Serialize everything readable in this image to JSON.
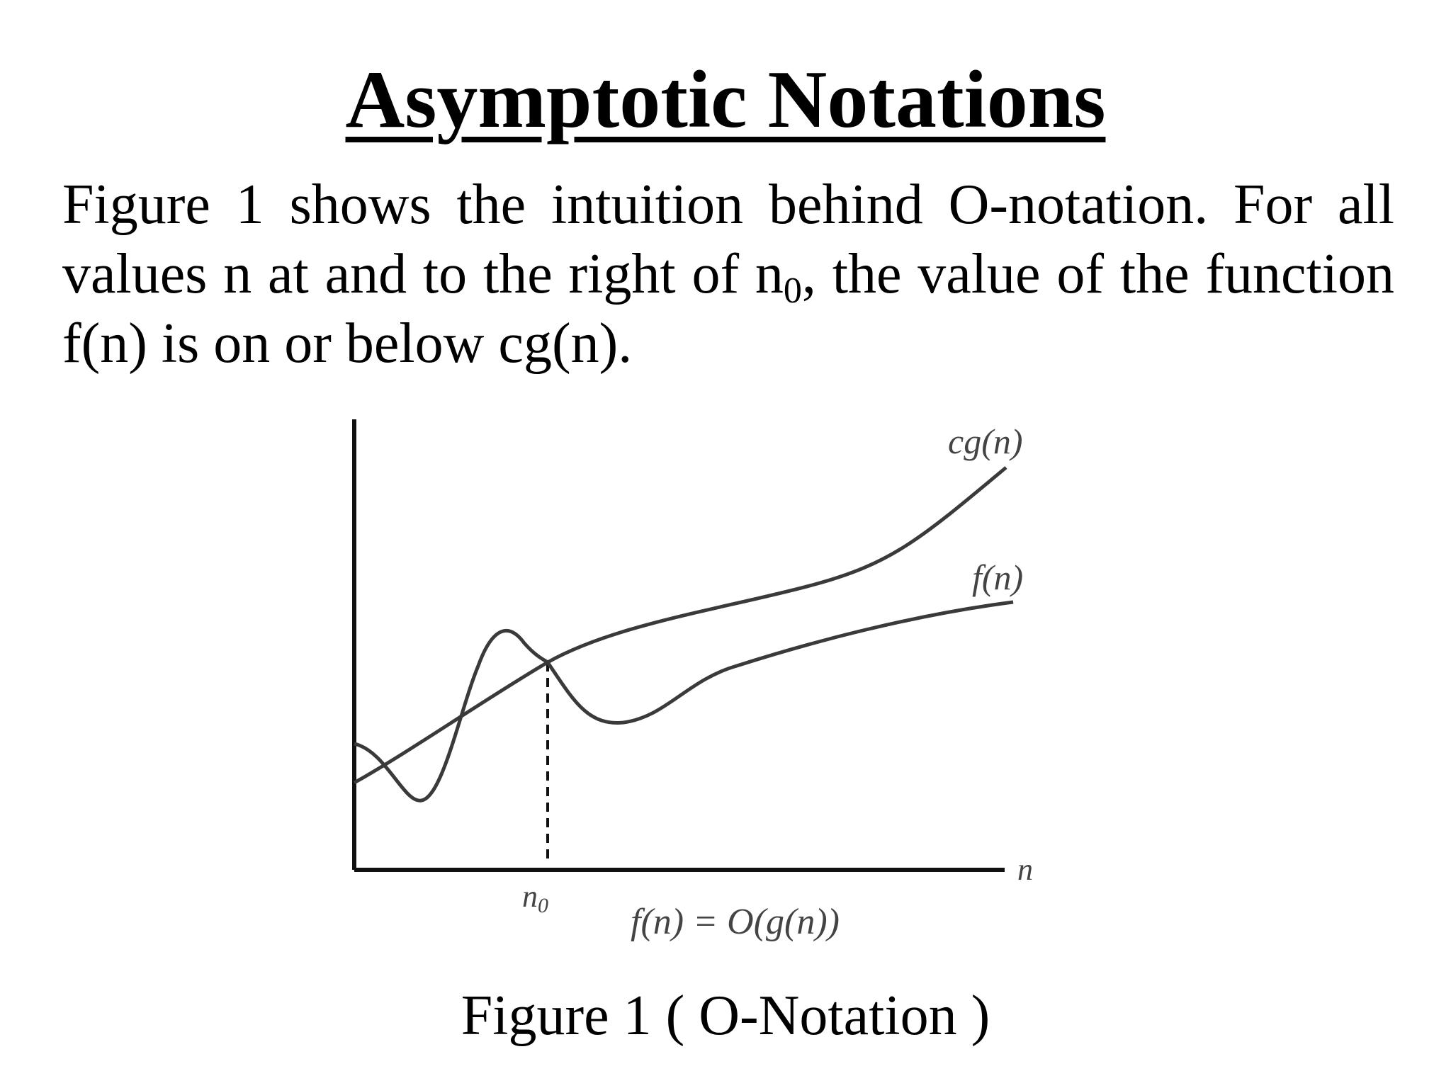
{
  "title": "Asymptotic Notations",
  "paragraph": {
    "before_sub": "Figure 1 shows the intuition behind O-notation. For all values n at and to the right of n",
    "subscript": "0",
    "after_sub": ", the value of the function f(n) is on or below cg(n)."
  },
  "figure": {
    "curve_labels": {
      "cg": "cg(n)",
      "f": "f(n)"
    },
    "x_axis_label": "n",
    "threshold_label": {
      "base": "n",
      "subscript": "0"
    },
    "equation": "f(n) = O(g(n))",
    "colors": {
      "curves": "#3a3a3a",
      "axes": "#111111",
      "labels": "#444444"
    }
  },
  "caption": "Figure 1 ( O-Notation )"
}
